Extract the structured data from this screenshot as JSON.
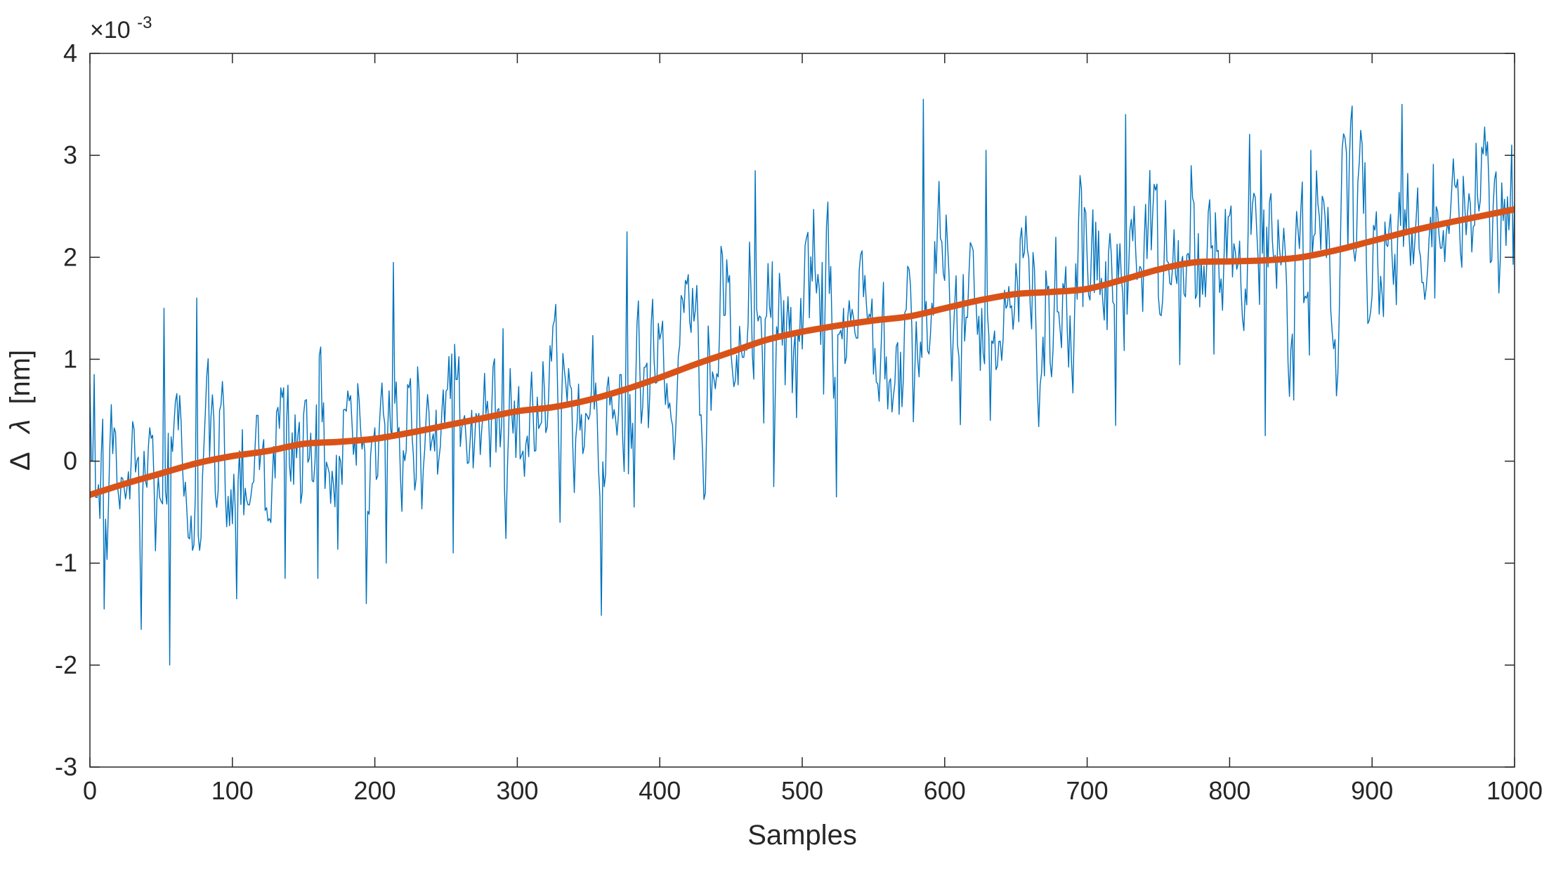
{
  "chart_data": {
    "type": "line",
    "xlabel": "Samples",
    "ylabel": "Δ  λ [nm]",
    "ylabel_parts": {
      "delta": "Δ",
      "lambda": "λ",
      "unit": "[nm]"
    },
    "y_exponent": {
      "base": "×10",
      "power": "-3"
    },
    "xlim": [
      0,
      1000
    ],
    "ylim": [
      -3,
      4
    ],
    "y_scale_note_multiplier": 0.001,
    "xticks": [
      0,
      100,
      200,
      300,
      400,
      500,
      600,
      700,
      800,
      900,
      1000
    ],
    "xtick_labels": [
      "0",
      "100",
      "200",
      "300",
      "400",
      "500",
      "600",
      "700",
      "800",
      "900",
      "1000"
    ],
    "yticks": [
      -3,
      -2,
      -1,
      0,
      1,
      2,
      3,
      4
    ],
    "ytick_labels": [
      "-3",
      "-2",
      "-1",
      "0",
      "1",
      "2",
      "3",
      "4"
    ],
    "grid": false,
    "box": true,
    "series": [
      {
        "kind": "raw-noisy",
        "color": "#0072BD",
        "stroke": "thin",
        "n_points": 1001,
        "trend_anchors": {
          "x": [
            0,
            100,
            150,
            200,
            250,
            300,
            350,
            400,
            450,
            500,
            550,
            600,
            650,
            700,
            750,
            800,
            850,
            900,
            950,
            1000
          ],
          "y": [
            -0.3,
            0.05,
            0.17,
            0.22,
            0.35,
            0.48,
            0.58,
            0.85,
            1.1,
            1.28,
            1.38,
            1.48,
            1.63,
            1.68,
            1.87,
            1.97,
            2.02,
            2.18,
            2.35,
            2.48
          ]
        },
        "noise_std": 0.45,
        "peaks": [
          {
            "x": 3,
            "y": 0.85
          },
          {
            "x": 10,
            "y": -1.45
          },
          {
            "x": 36,
            "y": -1.65
          },
          {
            "x": 52,
            "y": 1.5
          },
          {
            "x": 56,
            "y": -2.0
          },
          {
            "x": 75,
            "y": 1.6
          },
          {
            "x": 103,
            "y": -1.35
          },
          {
            "x": 137,
            "y": -1.15
          },
          {
            "x": 160,
            "y": -1.15
          },
          {
            "x": 213,
            "y": 1.95
          },
          {
            "x": 208,
            "y": -1.0
          },
          {
            "x": 255,
            "y": -0.9
          },
          {
            "x": 290,
            "y": 1.3
          },
          {
            "x": 330,
            "y": -0.6
          },
          {
            "x": 377,
            "y": 2.25
          },
          {
            "x": 382,
            "y": -0.45
          },
          {
            "x": 467,
            "y": 2.85
          },
          {
            "x": 480,
            "y": -0.25
          },
          {
            "x": 514,
            "y": 1.95
          },
          {
            "x": 524,
            "y": -0.35
          },
          {
            "x": 585,
            "y": 3.55
          },
          {
            "x": 629,
            "y": 3.05
          },
          {
            "x": 632,
            "y": 0.4
          },
          {
            "x": 727,
            "y": 3.4
          },
          {
            "x": 720,
            "y": 0.35
          },
          {
            "x": 789,
            "y": 1.05
          },
          {
            "x": 825,
            "y": 0.25
          },
          {
            "x": 822,
            "y": 3.05
          },
          {
            "x": 845,
            "y": 0.6
          },
          {
            "x": 857,
            "y": 3.05
          },
          {
            "x": 897,
            "y": 1.35
          },
          {
            "x": 921,
            "y": 3.5
          },
          {
            "x": 944,
            "y": 1.6
          },
          {
            "x": 989,
            "y": 1.65
          },
          {
            "x": 998,
            "y": 3.1
          }
        ]
      },
      {
        "kind": "smoothed-trend",
        "color": "#D95319",
        "stroke": "thick",
        "x": [
          0,
          25,
          50,
          75,
          100,
          125,
          150,
          175,
          200,
          225,
          250,
          275,
          300,
          325,
          350,
          375,
          400,
          425,
          450,
          475,
          500,
          525,
          550,
          575,
          600,
          625,
          650,
          675,
          700,
          725,
          750,
          775,
          800,
          825,
          850,
          875,
          900,
          925,
          950,
          975,
          1000
        ],
        "y": [
          -0.33,
          -0.22,
          -0.12,
          -0.02,
          0.05,
          0.1,
          0.17,
          0.19,
          0.22,
          0.28,
          0.35,
          0.42,
          0.49,
          0.53,
          0.6,
          0.7,
          0.82,
          0.95,
          1.07,
          1.19,
          1.27,
          1.33,
          1.38,
          1.42,
          1.5,
          1.58,
          1.64,
          1.66,
          1.69,
          1.78,
          1.88,
          1.95,
          1.96,
          1.97,
          2.0,
          2.07,
          2.16,
          2.25,
          2.33,
          2.4,
          2.47
        ]
      }
    ]
  }
}
